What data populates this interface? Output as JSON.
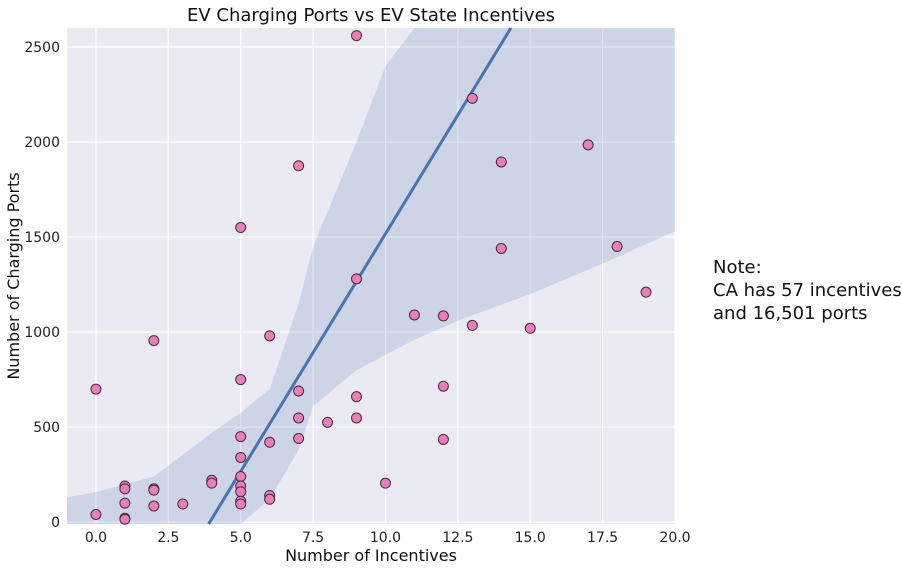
{
  "chart_data": {
    "type": "scatter",
    "title": "EV Charging Ports vs EV State Incentives",
    "xlabel": "Number of Incentives",
    "ylabel": "Number of Charging Ports",
    "xlim": [
      -1,
      20
    ],
    "ylim": [
      -10,
      2600
    ],
    "xticks": [
      0.0,
      2.5,
      5.0,
      7.5,
      10.0,
      12.5,
      15.0,
      17.5,
      20.0
    ],
    "xtick_labels": [
      "0.0",
      "2.5",
      "5.0",
      "7.5",
      "10.0",
      "12.5",
      "15.0",
      "17.5",
      "20.0"
    ],
    "yticks": [
      0,
      500,
      1000,
      1500,
      2000,
      2500
    ],
    "ytick_labels": [
      "0",
      "500",
      "1000",
      "1500",
      "2000",
      "2500"
    ],
    "grid": true,
    "background_color": "#eaeaf2",
    "point_color": "#e87fb8",
    "point_edge_color": "#4a2a3a",
    "line_color": "#4c72b0",
    "band_color": "#4c72b0",
    "regression": {
      "slope": 250.0,
      "intercept": -983.0
    },
    "confidence_band": [
      {
        "x": -1,
        "lo": -10,
        "hi": 130
      },
      {
        "x": 0,
        "lo": -10,
        "hi": 158
      },
      {
        "x": 2,
        "lo": -10,
        "hi": 240
      },
      {
        "x": 4,
        "lo": -10,
        "hi": 470
      },
      {
        "x": 5,
        "lo": -10,
        "hi": 575
      },
      {
        "x": 6,
        "lo": 120,
        "hi": 700
      },
      {
        "x": 7,
        "lo": 380,
        "hi": 1150
      },
      {
        "x": 7.5,
        "lo": 610,
        "hi": 1450
      },
      {
        "x": 9,
        "lo": 800,
        "hi": 2000
      },
      {
        "x": 10,
        "lo": 880,
        "hi": 2400
      },
      {
        "x": 11,
        "lo": 960,
        "hi": 2600
      },
      {
        "x": 12.5,
        "lo": 1060,
        "hi": 2600
      },
      {
        "x": 15,
        "lo": 1200,
        "hi": 2600
      },
      {
        "x": 17.5,
        "lo": 1360,
        "hi": 2600
      },
      {
        "x": 20,
        "lo": 1530,
        "hi": 2600
      }
    ],
    "points": [
      {
        "x": 0,
        "y": 700
      },
      {
        "x": 0,
        "y": 40
      },
      {
        "x": 1,
        "y": 190
      },
      {
        "x": 1,
        "y": 175
      },
      {
        "x": 1,
        "y": 100
      },
      {
        "x": 1,
        "y": 20
      },
      {
        "x": 1,
        "y": 15
      },
      {
        "x": 2,
        "y": 955
      },
      {
        "x": 2,
        "y": 175
      },
      {
        "x": 2,
        "y": 168
      },
      {
        "x": 2,
        "y": 85
      },
      {
        "x": 3,
        "y": 95
      },
      {
        "x": 4,
        "y": 220
      },
      {
        "x": 4,
        "y": 205
      },
      {
        "x": 5,
        "y": 1550
      },
      {
        "x": 5,
        "y": 750
      },
      {
        "x": 5,
        "y": 450
      },
      {
        "x": 5,
        "y": 340
      },
      {
        "x": 5,
        "y": 240
      },
      {
        "x": 5,
        "y": 190
      },
      {
        "x": 5,
        "y": 160
      },
      {
        "x": 5,
        "y": 110
      },
      {
        "x": 5,
        "y": 95
      },
      {
        "x": 6,
        "y": 980
      },
      {
        "x": 6,
        "y": 420
      },
      {
        "x": 6,
        "y": 140
      },
      {
        "x": 6,
        "y": 120
      },
      {
        "x": 7,
        "y": 1875
      },
      {
        "x": 7,
        "y": 690
      },
      {
        "x": 7,
        "y": 548
      },
      {
        "x": 7,
        "y": 440
      },
      {
        "x": 8,
        "y": 525
      },
      {
        "x": 9,
        "y": 2560
      },
      {
        "x": 9,
        "y": 1280
      },
      {
        "x": 9,
        "y": 660
      },
      {
        "x": 9,
        "y": 548
      },
      {
        "x": 10,
        "y": 205
      },
      {
        "x": 11,
        "y": 1090
      },
      {
        "x": 12,
        "y": 1085
      },
      {
        "x": 12,
        "y": 715
      },
      {
        "x": 12,
        "y": 435
      },
      {
        "x": 13,
        "y": 2230
      },
      {
        "x": 13,
        "y": 1035
      },
      {
        "x": 14,
        "y": 1895
      },
      {
        "x": 14,
        "y": 1440
      },
      {
        "x": 15,
        "y": 1020
      },
      {
        "x": 17,
        "y": 1985
      },
      {
        "x": 18,
        "y": 1450
      },
      {
        "x": 19,
        "y": 1210
      }
    ]
  },
  "note": {
    "line1": "Note:",
    "line2": "CA has 57 incentives",
    "line3": "and 16,501 ports"
  }
}
